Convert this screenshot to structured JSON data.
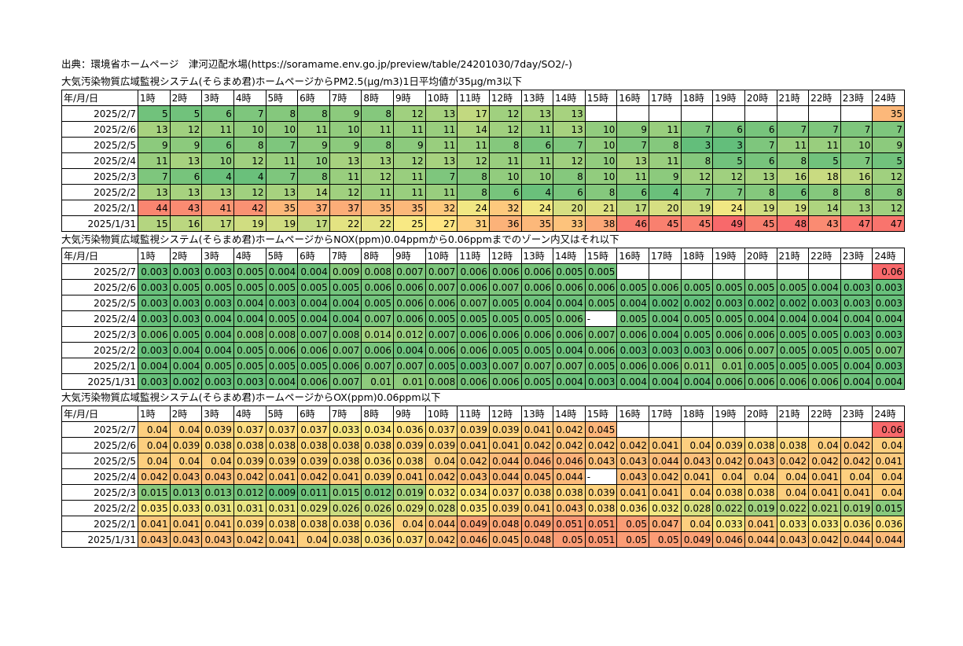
{
  "source": "出典：環境省ホームページ　津河辺配水場(https://soramame.env.go.jp/preview/table/24201030/7day/SO2/-)",
  "header": [
    "年/月/日",
    "1時",
    "2時",
    "3時",
    "4時",
    "5時",
    "6時",
    "7時",
    "8時",
    "9時",
    "10時",
    "11時",
    "12時",
    "13時",
    "14時",
    "15時",
    "16時",
    "17時",
    "18時",
    "19時",
    "20時",
    "21時",
    "22時",
    "23時",
    "24時"
  ],
  "sections": [
    {
      "title": "大気汚染物質広域監視システム(そらまめ君)ホームページからPM2.5(μg/m3)1日平均値が35μg/m3以下",
      "lo": 3,
      "hi": 49,
      "rows": [
        {
          "date": "2025/2/7",
          "values": [
            "5",
            "5",
            "6",
            "7",
            "8",
            "8",
            "9",
            "8",
            "12",
            "13",
            "17",
            "12",
            "13",
            "13",
            "",
            "",
            "",
            "",
            "",
            "",
            "",
            "",
            "",
            "35"
          ]
        },
        {
          "date": "2025/2/6",
          "values": [
            "13",
            "12",
            "11",
            "10",
            "10",
            "11",
            "10",
            "11",
            "11",
            "11",
            "14",
            "12",
            "11",
            "13",
            "10",
            "9",
            "11",
            "7",
            "6",
            "6",
            "7",
            "7",
            "7",
            "7"
          ]
        },
        {
          "date": "2025/2/5",
          "values": [
            "9",
            "9",
            "6",
            "8",
            "7",
            "9",
            "9",
            "8",
            "9",
            "11",
            "11",
            "8",
            "6",
            "7",
            "10",
            "7",
            "8",
            "3",
            "3",
            "7",
            "11",
            "11",
            "10",
            "9"
          ]
        },
        {
          "date": "2025/2/4",
          "values": [
            "11",
            "13",
            "10",
            "12",
            "11",
            "10",
            "13",
            "13",
            "12",
            "13",
            "12",
            "11",
            "11",
            "12",
            "10",
            "13",
            "11",
            "8",
            "5",
            "6",
            "8",
            "5",
            "7",
            "5"
          ]
        },
        {
          "date": "2025/2/3",
          "values": [
            "7",
            "6",
            "4",
            "4",
            "7",
            "8",
            "11",
            "12",
            "11",
            "7",
            "8",
            "10",
            "10",
            "8",
            "10",
            "11",
            "9",
            "12",
            "12",
            "13",
            "16",
            "18",
            "16",
            "12"
          ]
        },
        {
          "date": "2025/2/2",
          "values": [
            "13",
            "13",
            "13",
            "12",
            "13",
            "14",
            "12",
            "11",
            "11",
            "11",
            "8",
            "6",
            "4",
            "6",
            "8",
            "6",
            "4",
            "7",
            "7",
            "8",
            "6",
            "8",
            "8",
            "8"
          ]
        },
        {
          "date": "2025/2/1",
          "values": [
            "44",
            "43",
            "41",
            "42",
            "35",
            "37",
            "37",
            "35",
            "35",
            "32",
            "24",
            "32",
            "24",
            "20",
            "21",
            "17",
            "20",
            "19",
            "24",
            "19",
            "19",
            "14",
            "13",
            "12"
          ]
        },
        {
          "date": "2025/1/31",
          "values": [
            "15",
            "16",
            "17",
            "19",
            "19",
            "17",
            "22",
            "22",
            "25",
            "27",
            "31",
            "36",
            "35",
            "33",
            "38",
            "46",
            "45",
            "45",
            "49",
            "45",
            "48",
            "43",
            "47",
            "47"
          ]
        }
      ]
    },
    {
      "title": "大気汚染物質広域監視システム(そらまめ君)ホームページからNOX(ppm)0.04ppmから0.06ppmまでのゾーン内又はそれ以下",
      "lo": 0.002,
      "hi": 0.06,
      "rows": [
        {
          "date": "2025/2/7",
          "values": [
            "0.003",
            "0.003",
            "0.003",
            "0.005",
            "0.004",
            "0.004",
            "0.009",
            "0.008",
            "0.007",
            "0.007",
            "0.006",
            "0.006",
            "0.006",
            "0.005",
            "0.005",
            "",
            "",
            "",
            "",
            "",
            "",
            "",
            "",
            "0.06"
          ]
        },
        {
          "date": "2025/2/6",
          "values": [
            "0.003",
            "0.005",
            "0.005",
            "0.005",
            "0.005",
            "0.005",
            "0.005",
            "0.006",
            "0.006",
            "0.007",
            "0.006",
            "0.007",
            "0.006",
            "0.006",
            "0.006",
            "0.005",
            "0.006",
            "0.005",
            "0.005",
            "0.005",
            "0.005",
            "0.004",
            "0.003",
            "0.003"
          ]
        },
        {
          "date": "2025/2/5",
          "values": [
            "0.003",
            "0.003",
            "0.003",
            "0.004",
            "0.003",
            "0.004",
            "0.004",
            "0.005",
            "0.006",
            "0.006",
            "0.007",
            "0.005",
            "0.004",
            "0.004",
            "0.005",
            "0.004",
            "0.002",
            "0.002",
            "0.003",
            "0.002",
            "0.002",
            "0.003",
            "0.003",
            "0.003"
          ]
        },
        {
          "date": "2025/2/4",
          "values": [
            "0.003",
            "0.003",
            "0.004",
            "0.004",
            "0.005",
            "0.004",
            "0.004",
            "0.007",
            "0.006",
            "0.005",
            "0.005",
            "0.005",
            "0.005",
            "0.006",
            "-",
            "0.005",
            "0.004",
            "0.005",
            "0.005",
            "0.004",
            "0.004",
            "0.004",
            "0.004",
            "0.004"
          ]
        },
        {
          "date": "2025/2/3",
          "values": [
            "0.006",
            "0.005",
            "0.004",
            "0.008",
            "0.008",
            "0.007",
            "0.008",
            "0.014",
            "0.012",
            "0.007",
            "0.006",
            "0.006",
            "0.006",
            "0.006",
            "0.007",
            "0.006",
            "0.004",
            "0.005",
            "0.006",
            "0.006",
            "0.005",
            "0.005",
            "0.003",
            "0.003"
          ]
        },
        {
          "date": "2025/2/2",
          "values": [
            "0.003",
            "0.004",
            "0.004",
            "0.005",
            "0.006",
            "0.006",
            "0.007",
            "0.006",
            "0.004",
            "0.006",
            "0.006",
            "0.005",
            "0.005",
            "0.004",
            "0.006",
            "0.003",
            "0.003",
            "0.003",
            "0.006",
            "0.007",
            "0.005",
            "0.005",
            "0.005",
            "0.007"
          ]
        },
        {
          "date": "2025/2/1",
          "values": [
            "0.004",
            "0.004",
            "0.005",
            "0.005",
            "0.005",
            "0.005",
            "0.006",
            "0.007",
            "0.007",
            "0.005",
            "0.003",
            "0.007",
            "0.007",
            "0.007",
            "0.005",
            "0.006",
            "0.006",
            "0.011",
            "0.01",
            "0.005",
            "0.005",
            "0.005",
            "0.004",
            "0.003"
          ]
        },
        {
          "date": "2025/1/31",
          "values": [
            "0.003",
            "0.002",
            "0.003",
            "0.003",
            "0.004",
            "0.006",
            "0.007",
            "0.01",
            "0.01",
            "0.008",
            "0.006",
            "0.006",
            "0.005",
            "0.004",
            "0.003",
            "0.004",
            "0.004",
            "0.004",
            "0.006",
            "0.006",
            "0.006",
            "0.006",
            "0.004",
            "0.004"
          ]
        }
      ]
    },
    {
      "title": "大気汚染物質広域監視システム(そらまめ君)ホームページからOX(ppm)0.06ppm以下",
      "lo": 0.009,
      "hi": 0.06,
      "rows": [
        {
          "date": "2025/2/7",
          "values": [
            "0.04",
            "0.04",
            "0.039",
            "0.037",
            "0.037",
            "0.037",
            "0.033",
            "0.034",
            "0.036",
            "0.037",
            "0.039",
            "0.039",
            "0.041",
            "0.042",
            "0.045",
            "",
            "",
            "",
            "",
            "",
            "",
            "",
            "",
            "0.06"
          ]
        },
        {
          "date": "2025/2/6",
          "values": [
            "0.04",
            "0.039",
            "0.038",
            "0.038",
            "0.038",
            "0.038",
            "0.038",
            "0.038",
            "0.039",
            "0.039",
            "0.041",
            "0.041",
            "0.042",
            "0.042",
            "0.042",
            "0.042",
            "0.041",
            "0.04",
            "0.039",
            "0.038",
            "0.038",
            "0.04",
            "0.042",
            "0.04"
          ]
        },
        {
          "date": "2025/2/5",
          "values": [
            "0.04",
            "0.04",
            "0.04",
            "0.039",
            "0.039",
            "0.039",
            "0.038",
            "0.036",
            "0.038",
            "0.04",
            "0.042",
            "0.044",
            "0.046",
            "0.046",
            "0.043",
            "0.043",
            "0.044",
            "0.043",
            "0.042",
            "0.043",
            "0.042",
            "0.042",
            "0.042",
            "0.041"
          ]
        },
        {
          "date": "2025/2/4",
          "values": [
            "0.042",
            "0.043",
            "0.043",
            "0.042",
            "0.041",
            "0.042",
            "0.041",
            "0.039",
            "0.041",
            "0.042",
            "0.043",
            "0.044",
            "0.045",
            "0.044",
            "-",
            "0.043",
            "0.042",
            "0.041",
            "0.04",
            "0.04",
            "0.04",
            "0.041",
            "0.04",
            "0.04"
          ]
        },
        {
          "date": "2025/2/3",
          "values": [
            "0.015",
            "0.013",
            "0.013",
            "0.012",
            "0.009",
            "0.011",
            "0.015",
            "0.012",
            "0.019",
            "0.032",
            "0.034",
            "0.037",
            "0.038",
            "0.038",
            "0.039",
            "0.041",
            "0.041",
            "0.04",
            "0.038",
            "0.038",
            "0.04",
            "0.041",
            "0.041",
            "0.04"
          ]
        },
        {
          "date": "2025/2/2",
          "values": [
            "0.035",
            "0.033",
            "0.031",
            "0.031",
            "0.031",
            "0.029",
            "0.026",
            "0.026",
            "0.029",
            "0.028",
            "0.035",
            "0.039",
            "0.041",
            "0.043",
            "0.038",
            "0.036",
            "0.032",
            "0.028",
            "0.022",
            "0.019",
            "0.022",
            "0.021",
            "0.019",
            "0.015"
          ]
        },
        {
          "date": "2025/2/1",
          "values": [
            "0.041",
            "0.041",
            "0.041",
            "0.039",
            "0.038",
            "0.038",
            "0.038",
            "0.036",
            "0.04",
            "0.044",
            "0.049",
            "0.048",
            "0.049",
            "0.051",
            "0.051",
            "0.05",
            "0.047",
            "0.04",
            "0.033",
            "0.041",
            "0.033",
            "0.033",
            "0.036",
            "0.036"
          ]
        },
        {
          "date": "2025/1/31",
          "values": [
            "0.043",
            "0.043",
            "0.043",
            "0.042",
            "0.041",
            "0.04",
            "0.038",
            "0.036",
            "0.037",
            "0.042",
            "0.046",
            "0.045",
            "0.048",
            "0.05",
            "0.051",
            "0.05",
            "0.05",
            "0.049",
            "0.046",
            "0.044",
            "0.043",
            "0.042",
            "0.044",
            "0.044"
          ]
        }
      ]
    }
  ],
  "colors": {
    "low": "#63be7b",
    "mid": "#ffeb84",
    "high": "#f8696b",
    "border": "#000000",
    "empty": "#ffffff"
  }
}
